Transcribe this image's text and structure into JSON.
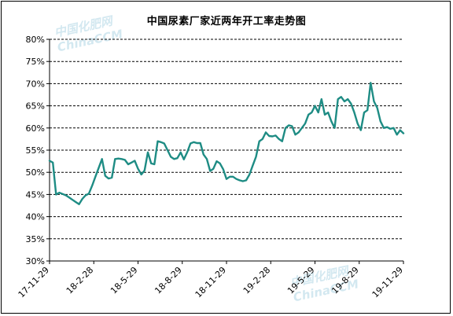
{
  "chart_data": {
    "type": "line",
    "title": "中国尿素厂家近两年开工率走势图",
    "ylim": [
      30,
      80
    ],
    "y_ticks": [
      "30%",
      "35%",
      "40%",
      "45%",
      "50%",
      "55%",
      "60%",
      "65%",
      "70%",
      "75%",
      "80%"
    ],
    "x_ticks": [
      "17-11-29",
      "18-2-28",
      "18-5-29",
      "18-8-29",
      "18-11-29",
      "19-2-28",
      "19-5-29",
      "19-8-29",
      "19-11-29"
    ],
    "grid": true,
    "line_color": "#1e8c84",
    "series": [
      {
        "values": [
          52.6,
          52.2,
          45.0,
          45.4,
          45.1,
          44.8,
          44.3,
          43.8,
          43.3,
          42.8,
          44.0,
          44.8,
          45.2,
          47.0,
          49.0,
          51.0,
          53.0,
          49.2,
          48.6,
          48.8,
          53.0,
          53.1,
          53.0,
          52.8,
          51.8,
          52.2,
          52.6,
          50.8,
          49.5,
          50.4,
          54.5,
          52.0,
          51.8,
          57.0,
          56.8,
          56.5,
          55.0,
          53.5,
          53.0,
          53.2,
          54.5,
          52.9,
          54.5,
          56.5,
          56.8,
          56.6,
          56.6,
          54.0,
          53.0,
          50.3,
          50.8,
          52.5,
          52.0,
          50.7,
          48.5,
          49.0,
          49.0,
          48.5,
          48.2,
          48.0,
          48.2,
          49.5,
          51.5,
          53.5,
          57.0,
          57.5,
          59.0,
          58.2,
          58.1,
          58.3,
          57.5,
          57.0,
          60.0,
          60.6,
          60.4,
          58.5,
          59.0,
          60.0,
          61.0,
          63.0,
          63.5,
          65.0,
          63.5,
          66.5,
          63.0,
          63.5,
          61.5,
          60.0,
          66.5,
          67.0,
          66.0,
          66.5,
          65.5,
          63.5,
          61.0,
          59.5,
          63.5,
          64.0,
          70.2,
          66.0,
          64.5,
          61.5,
          60.0,
          60.2,
          59.8,
          60.0,
          58.5,
          59.5,
          58.8
        ]
      }
    ]
  },
  "watermark": {
    "cn": "中国化肥网",
    "en": "ChinaCCM"
  }
}
